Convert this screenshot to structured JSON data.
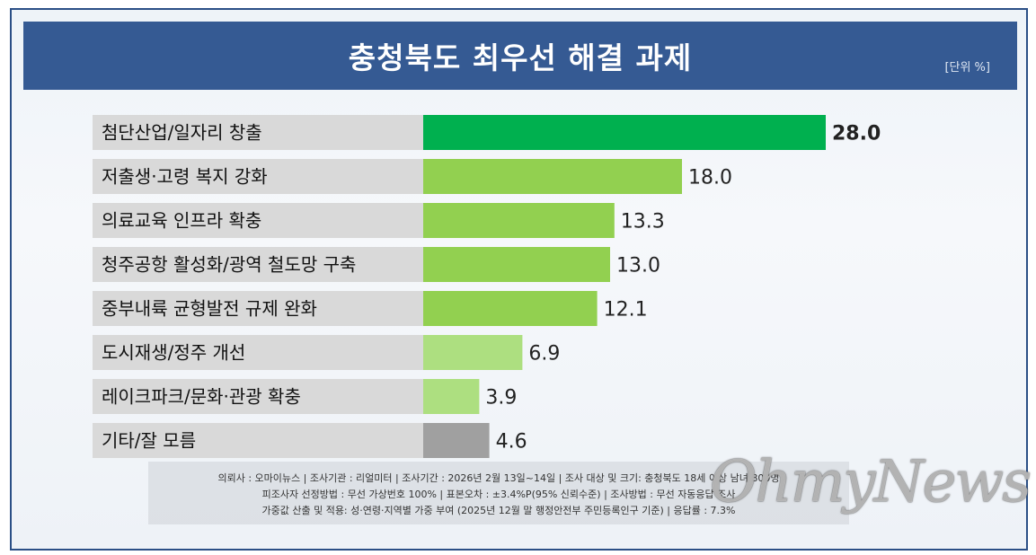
{
  "title": "충청북도 최우선 해결 과제",
  "unit": "[단위 %]",
  "chart_data": {
    "type": "bar",
    "orientation": "horizontal",
    "categories": [
      "첨단산업/일자리 창출",
      "저출생·고령 복지 강화",
      "의료교육 인프라 확충",
      "청주공항 활성화/광역 철도망 구축",
      "중부내륙 균형발전 규제 완화",
      "도시재생/정주 개선",
      "레이크파크/문화·관광 확충",
      "기타/잘 모름"
    ],
    "values": [
      28.0,
      18.0,
      13.3,
      13.0,
      12.1,
      6.9,
      3.9,
      4.6
    ],
    "value_labels": [
      "28.0",
      "18.0",
      "13.3",
      "13.0",
      "12.1",
      "6.9",
      "3.9",
      "4.6"
    ],
    "bar_colors": [
      "#00b04f",
      "#92d050",
      "#92d050",
      "#92d050",
      "#92d050",
      "#addf80",
      "#addf80",
      "#a0a0a0"
    ],
    "highlight_index": 0,
    "label_bg_color": "#d9d9d9",
    "grid": false,
    "legend": "none"
  },
  "footer": {
    "line1": "의뢰사 : 오마이뉴스 | 조사기관 : 리얼미터 | 조사기간 : 2026년 2월 13일~14일 | 조사 대상 및 크기: 충청북도 18세 이상 남녀 800명",
    "line2": "피조사자 선정방법 : 무선 가상번호 100% | 표본오차 : ±3.4%P(95% 신뢰수준) | 조사방법 : 무선 자동응답 조사",
    "line3": "가중값 산출 및 적용: 성·연령·지역별 가중 부여 (2025년 12월 말 행정안전부 주민등록인구 기준) | 응답률 : 7.3%"
  },
  "watermark": "OhmyNews",
  "colors": {
    "header": "#355a93",
    "frame_border": "#2b4f86"
  }
}
